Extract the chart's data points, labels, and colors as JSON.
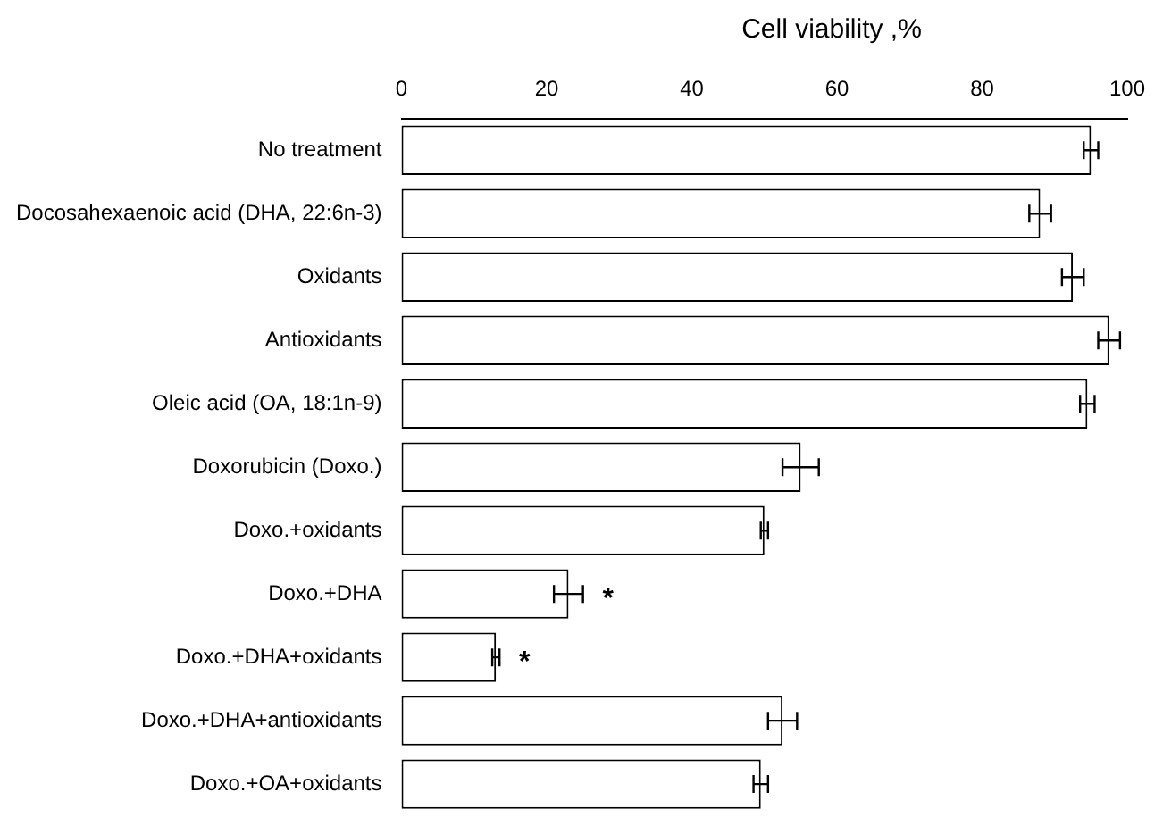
{
  "chart_data": {
    "type": "bar",
    "orientation": "horizontal",
    "xlabel": "Cell viability ,%",
    "categories": [
      "No treatment",
      "Docosahexaenoic acid (DHA, 22:6n-3)",
      "Oxidants",
      "Antioxidants",
      "Oleic acid (OA, 18:1n-9)",
      "Doxorubicin (Doxo.)",
      "Doxo.+oxidants",
      "Doxo.+DHA",
      "Doxo.+DHA+oxidants",
      "Doxo.+DHA+antioxidants",
      "Doxo.+OA+oxidants"
    ],
    "values": [
      95,
      88,
      92.5,
      97.5,
      94.5,
      55,
      50,
      23,
      13,
      52.5,
      49.5
    ],
    "errors": [
      1,
      1.5,
      1.5,
      1.5,
      1,
      2.5,
      0.5,
      2,
      0.5,
      2,
      1
    ],
    "color": "#ffffff",
    "xlim": [
      0,
      100
    ],
    "xticks": [
      0,
      20,
      40,
      60,
      80,
      100
    ],
    "grid": false,
    "legend": false,
    "value_labels": [
      null,
      null,
      null,
      null,
      null,
      null,
      null,
      "*",
      "*",
      null,
      null
    ]
  }
}
